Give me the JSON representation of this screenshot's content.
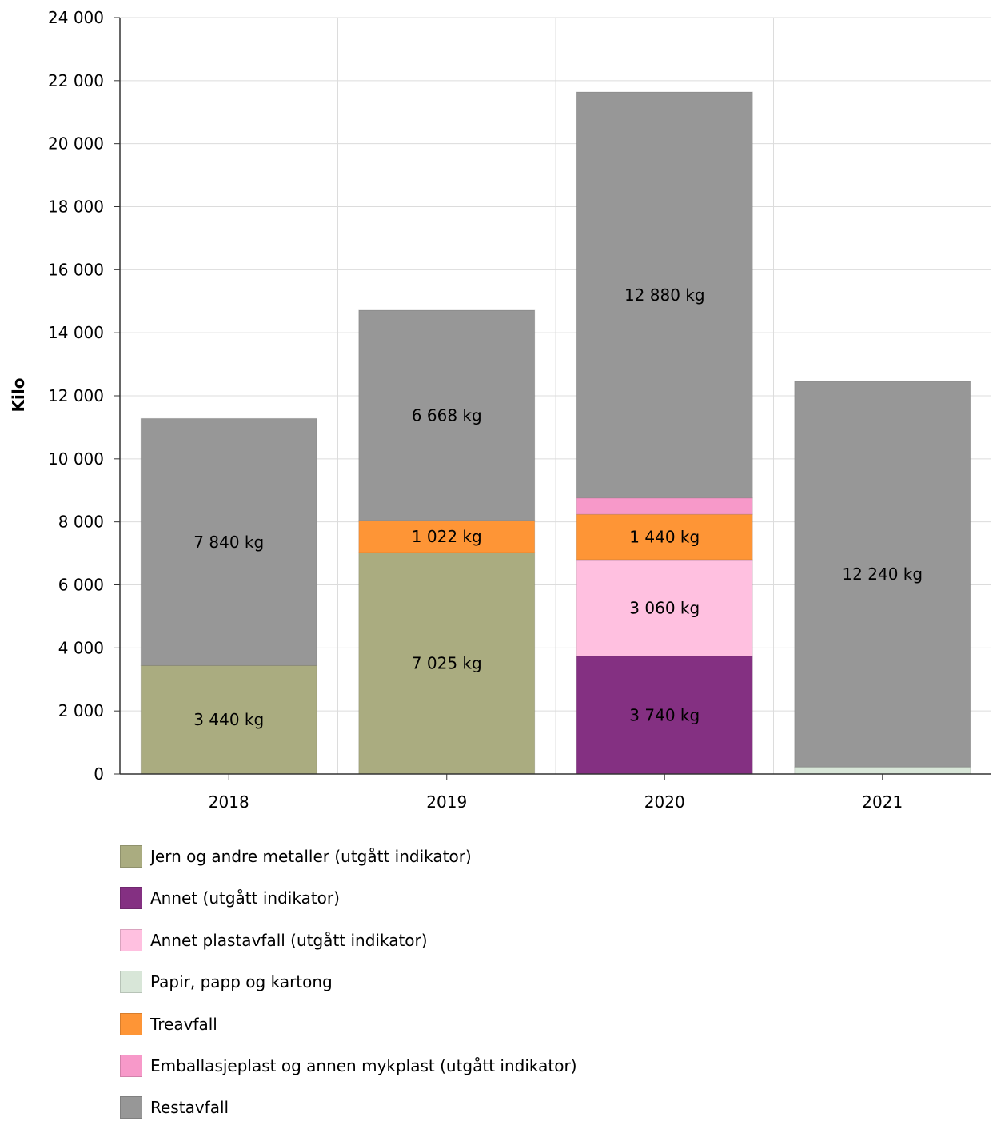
{
  "chart_data": {
    "type": "bar",
    "stacked": true,
    "categories": [
      "2018",
      "2019",
      "2020",
      "2021"
    ],
    "ylabel": "Kilo",
    "xlabel": "",
    "ylim": [
      0,
      24000
    ],
    "yticks": [
      0,
      2000,
      4000,
      6000,
      8000,
      10000,
      12000,
      14000,
      16000,
      18000,
      20000,
      22000,
      24000
    ],
    "ytick_labels": [
      "0",
      "2 000",
      "4 000",
      "6 000",
      "8 000",
      "10 000",
      "12 000",
      "14 000",
      "16 000",
      "18 000",
      "20 000",
      "22 000",
      "24 000"
    ],
    "grid": true,
    "legend_position": "bottom",
    "series": [
      {
        "name": "Jern og andre metaller (utgått indikator)",
        "color": "#aaac80",
        "values": [
          3440,
          7025,
          0,
          0
        ],
        "labels": [
          "3 440 kg",
          "7 025 kg",
          "",
          ""
        ]
      },
      {
        "name": "Annet (utgått indikator)",
        "color": "#843082",
        "values": [
          0,
          0,
          3740,
          0
        ],
        "labels": [
          "",
          "",
          "3 740 kg",
          ""
        ]
      },
      {
        "name": "Annet plastavfall (utgått indikator)",
        "color": "#ffc0e0",
        "values": [
          0,
          0,
          3060,
          0
        ],
        "labels": [
          "",
          "",
          "3 060 kg",
          ""
        ]
      },
      {
        "name": "Papir, papp og kartong",
        "color": "#d8e6d8",
        "values": [
          0,
          0,
          0,
          220
        ],
        "labels": [
          "",
          "",
          "",
          ""
        ]
      },
      {
        "name": "Treavfall",
        "color": "#fe9536",
        "values": [
          0,
          1022,
          1440,
          0
        ],
        "labels": [
          "",
          "1 022 kg",
          "1 440 kg",
          ""
        ]
      },
      {
        "name": "Emballasjeplast og annen mykplast (utgått indikator)",
        "color": "#f799c9",
        "values": [
          0,
          0,
          520,
          0
        ],
        "labels": [
          "",
          "",
          "",
          ""
        ]
      },
      {
        "name": "Restavfall",
        "color": "#979797",
        "values": [
          7840,
          6668,
          12880,
          12240
        ],
        "labels": [
          "7 840 kg",
          "6 668 kg",
          "12 880 kg",
          "12 240 kg"
        ]
      }
    ]
  }
}
